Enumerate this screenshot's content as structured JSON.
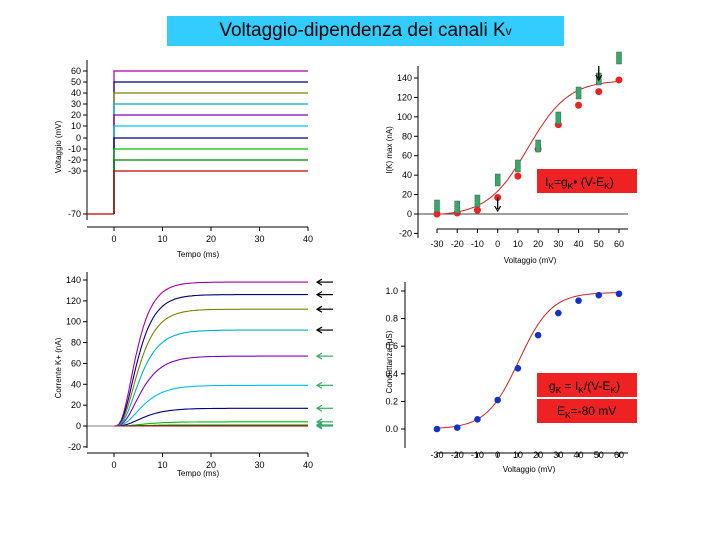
{
  "title": {
    "text": "Voltaggio-dipendenza dei canali K",
    "sub": "v"
  },
  "colors": {
    "title_bg": "#33ccff",
    "red_dot": "#ee2222",
    "blue_dot": "#1133cc",
    "fit_line": "#cc2222",
    "arrow_green": "#33aa66"
  },
  "trace_colors": [
    "#a400a4",
    "#000080",
    "#808000",
    "#00b0d0",
    "#8000c0",
    "#00c0ff",
    "#000080",
    "#00c000",
    "#008000",
    "#c00000",
    "#000000"
  ],
  "chart_data": [
    {
      "id": "voltage-protocol",
      "type": "line",
      "xlabel": "Tempo (ms)",
      "ylabel": "Voltaggio (mV)",
      "xticks": [
        "0",
        "10",
        "20",
        "30",
        "40"
      ],
      "yticks": [
        "60",
        "50",
        "40",
        "30",
        "20",
        "10",
        "0",
        "-10",
        "-20",
        "-30",
        "-70"
      ],
      "xlim": [
        0,
        40
      ],
      "holding_mV": -70,
      "step_mV": [
        60,
        50,
        40,
        30,
        20,
        10,
        0,
        -10,
        -20,
        -30
      ]
    },
    {
      "id": "ik-max-vs-voltage",
      "type": "scatter",
      "xlabel": "Voltaggio (mV)",
      "ylabel": "I(K) max (nA)",
      "xticks": [
        "-30",
        "-20",
        "-10",
        "0",
        "10",
        "20",
        "30",
        "40",
        "50",
        "60"
      ],
      "yticks": [
        "140",
        "120",
        "100",
        "80",
        "60",
        "40",
        "20",
        "0",
        "-20"
      ],
      "xlim": [
        -30,
        60
      ],
      "ylim": [
        -20,
        140
      ],
      "x": [
        -30,
        -20,
        -10,
        0,
        10,
        20,
        30,
        40,
        50,
        60
      ],
      "y": [
        0,
        1,
        4,
        17,
        39,
        67,
        92,
        112,
        126,
        138
      ],
      "annotation": {
        "main": "I",
        "sub1": "K",
        "mid": "=g",
        "sub2": "K",
        "rest": "• (V-E",
        "sub3": "K",
        "end": ")"
      }
    },
    {
      "id": "k-current-traces",
      "type": "line",
      "xlabel": "Tempo (ms)",
      "ylabel": "Corrente K+ (nA)",
      "xticks": [
        "0",
        "10",
        "20",
        "30",
        "40"
      ],
      "yticks": [
        "140",
        "120",
        "100",
        "80",
        "60",
        "40",
        "20",
        "0",
        "-20"
      ],
      "xlim": [
        0,
        40
      ],
      "ylim": [
        -20,
        140
      ],
      "plateaus_nA": [
        138,
        126,
        112,
        92,
        67,
        39,
        17,
        4,
        1,
        0
      ]
    },
    {
      "id": "conductance-vs-voltage",
      "type": "scatter",
      "xlabel": "Voltaggio (mV)",
      "ylabel": "Conduttanza (μS)",
      "xticks": [
        "-30",
        "-20",
        "-10",
        "0",
        "10",
        "20",
        "30",
        "40",
        "50",
        "60"
      ],
      "yticks": [
        "1.0",
        "0.8",
        "0.6",
        "0.4",
        "0.2",
        "0.0"
      ],
      "xlim": [
        -30,
        60
      ],
      "ylim": [
        0,
        1
      ],
      "x": [
        -30,
        -20,
        -10,
        0,
        10,
        20,
        30,
        40,
        50,
        60
      ],
      "y": [
        0.0,
        0.01,
        0.07,
        0.21,
        0.44,
        0.68,
        0.84,
        0.93,
        0.97,
        0.98
      ],
      "annotation1": {
        "a": "g",
        "b": "K",
        "c": " = I",
        "d": "K",
        "e": "/(V-E",
        "f": "K",
        "g": ")"
      },
      "annotation2": {
        "a": "E",
        "b": "K",
        "c": "=-80 mV"
      }
    }
  ]
}
